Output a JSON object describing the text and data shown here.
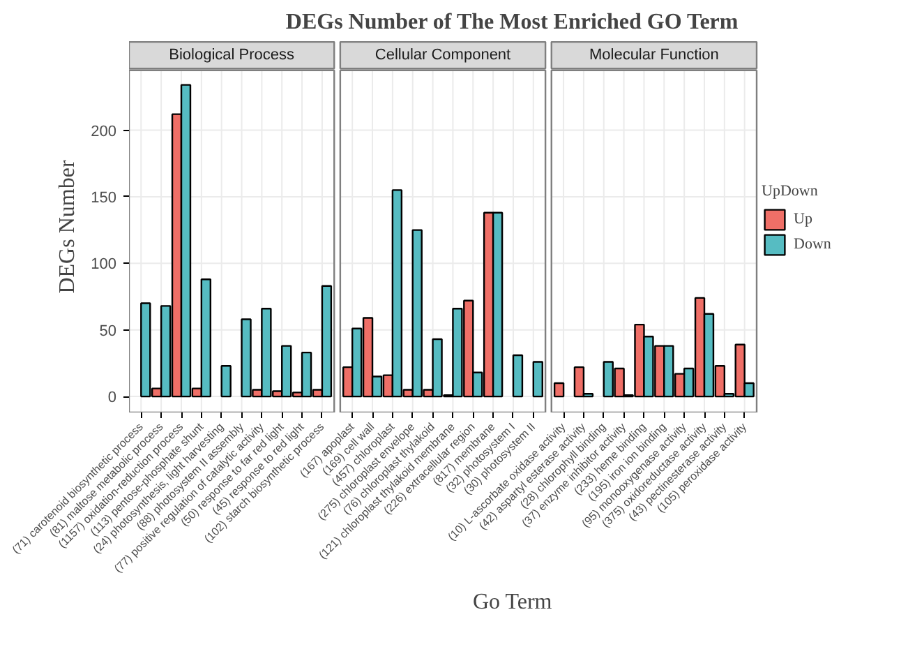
{
  "chart_data": [
    {
      "type": "bar",
      "title": "DEGs Number of The Most Enriched GO Term",
      "subtitle": "Biological Process",
      "ylabel": "DEGs Number",
      "categories": [
        "(71) carotenoid biosynthetic process",
        "(81) maltose metabolic process",
        "(1157) oxidation-reduction process",
        "(113) pentose-phosphate shunt",
        "(24) photosynthesis, light harvesting",
        "(88) photosystem II assembly",
        "(77) positive regulation of catalytic activity",
        "(50) response to far red light",
        "(45) response to red light",
        "(102) starch biosynthetic process"
      ],
      "series": [
        {
          "color": "#ef6f67",
          "values": [
            null,
            6,
            212,
            6,
            null,
            null,
            5,
            4,
            3,
            5
          ]
        },
        {
          "color": "#56bcc2",
          "values": [
            70,
            68,
            234,
            88,
            23,
            58,
            66,
            38,
            33,
            83
          ]
        }
      ],
      "ylim": [
        -12,
        245
      ],
      "yticks": [
        0,
        50,
        100,
        150,
        200
      ],
      "grid": true
    },
    {
      "type": "bar",
      "subtitle": "Cellular Component",
      "xlabel": "Go Term",
      "categories": [
        "(167) apoplast",
        "(169) cell wall",
        "(457) chloroplast",
        "(275) chloroplast envelope",
        "(76) chloroplast thylakoid",
        "(121) chloroplast thylakoid membrane",
        "(226) extracellular region",
        "(817) membrane",
        "(32) photosystem I",
        "(30) photosystem II"
      ],
      "series": [
        {
          "color": "#ef6f67",
          "values": [
            22,
            59,
            16,
            5,
            5,
            1,
            72,
            138,
            null,
            null
          ]
        },
        {
          "color": "#56bcc2",
          "values": [
            51,
            15,
            155,
            125,
            43,
            66,
            18,
            138,
            31,
            26
          ]
        }
      ],
      "ylim": [
        -12,
        245
      ],
      "yticks": [
        0,
        50,
        100,
        150,
        200
      ],
      "grid": true,
      "tick_labels": "x"
    },
    {
      "type": "bar",
      "subtitle": "Molecular Function",
      "legend": "right",
      "legend_title": "UpDown",
      "categories": [
        "(10) L-ascorbate oxidase activity",
        "(42) aspartyl esterase activity",
        "(28) chlorophyll binding",
        "(37) enzyme inhibitor activity",
        "(233) heme binding",
        "(195) iron ion binding",
        "(95) monooxygenase activity",
        "(375) oxidoreductase activity",
        "(43) pectinesterase activity",
        "(105) peroxidase activity"
      ],
      "series": [
        {
          "name": "Up",
          "color": "#ef6f67",
          "values": [
            10,
            22,
            null,
            21,
            54,
            38,
            17,
            74,
            23,
            39
          ]
        },
        {
          "name": "Down",
          "color": "#56bcc2",
          "values": [
            null,
            2,
            26,
            1,
            45,
            38,
            21,
            62,
            2,
            10
          ]
        }
      ],
      "ylim": [
        -12,
        245
      ],
      "yticks": [
        0,
        50,
        100,
        150,
        200
      ],
      "grid": true,
      "tick_labels": "x"
    }
  ]
}
